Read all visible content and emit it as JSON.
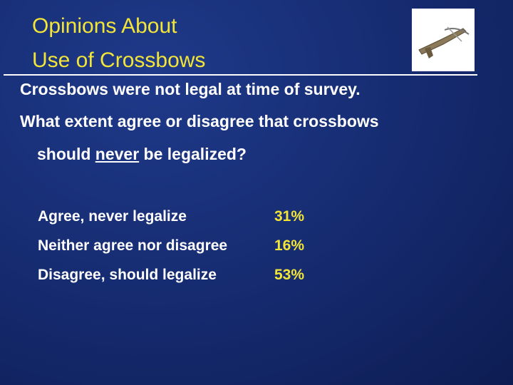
{
  "header": {
    "title": [
      "Opinions About",
      "Use of Crossbows"
    ]
  },
  "body": {
    "statement": "Crossbows were not legal at time of survey.",
    "question": [
      "What extent agree or disagree that crossbows",
      "should",
      "never",
      "be legalized?"
    ]
  },
  "table": {
    "rows": [
      [
        "Agree, never legalize",
        "31%"
      ],
      [
        "Neither agree nor disagree",
        "16%"
      ],
      [
        "Disagree, should legalize",
        "53%"
      ]
    ]
  }
}
